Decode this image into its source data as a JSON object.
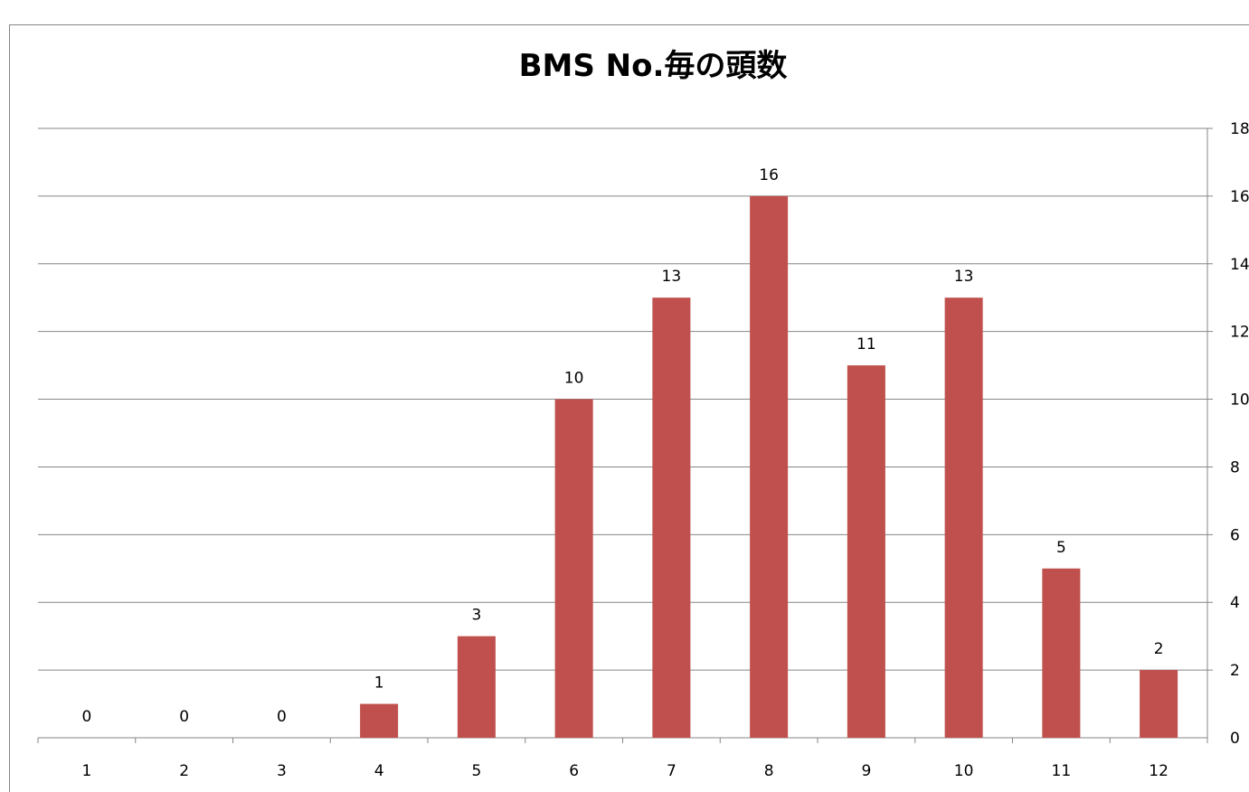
{
  "chart_data": {
    "type": "bar",
    "title": "BMS No.毎の頭数",
    "xlabel": "",
    "ylabel": "",
    "categories": [
      "1",
      "2",
      "3",
      "4",
      "5",
      "6",
      "7",
      "8",
      "9",
      "10",
      "11",
      "12"
    ],
    "values": [
      0,
      0,
      0,
      1,
      3,
      10,
      13,
      16,
      11,
      13,
      5,
      2
    ],
    "ylim": [
      0,
      18
    ],
    "yticks": [
      0,
      2,
      4,
      6,
      8,
      10,
      12,
      14,
      16,
      18
    ],
    "y_axis_side": "right",
    "grid": true,
    "legend": "none",
    "data_labels": true,
    "bar_color": "#C0504D",
    "grid_color": "#868686"
  }
}
